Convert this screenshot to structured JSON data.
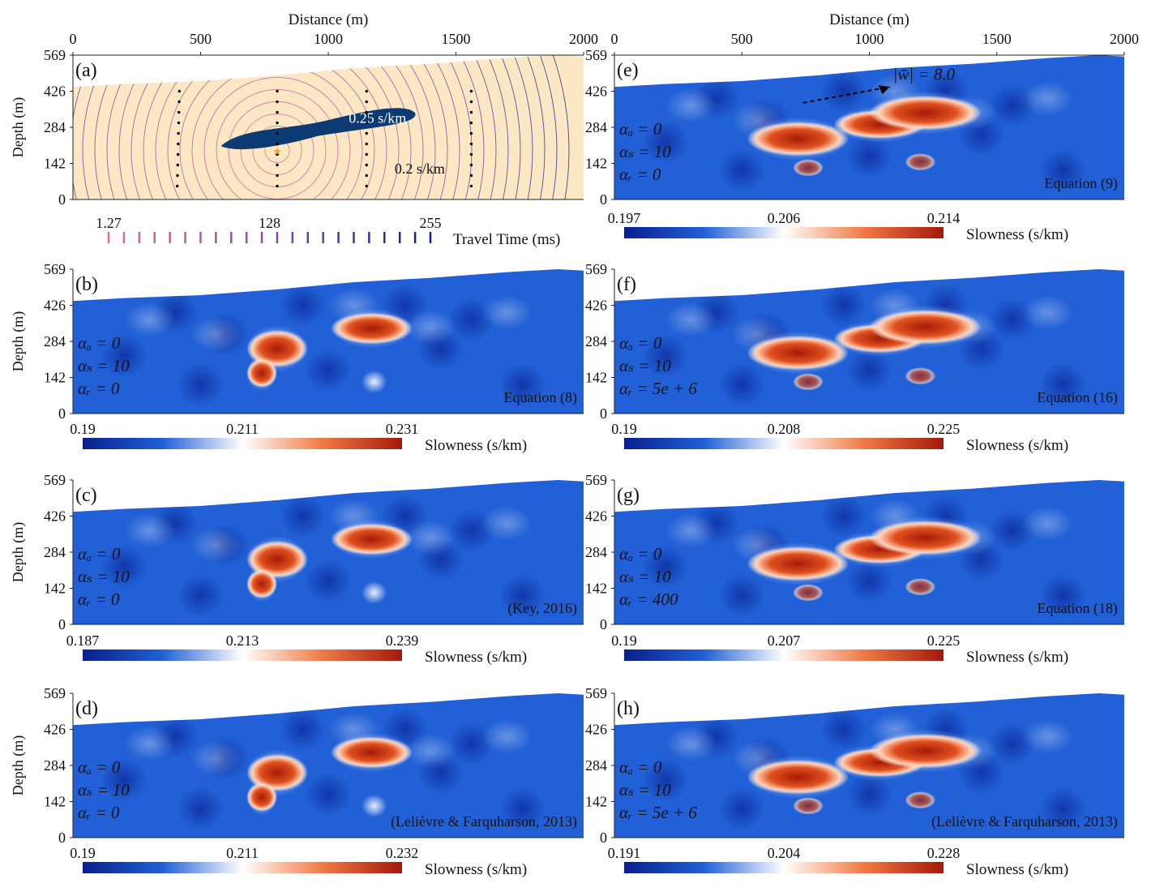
{
  "figure": {
    "distance_label": "Distance (m)",
    "depth_label": "Depth (m)",
    "distance_ticks": [
      "0",
      "500",
      "1000",
      "1500",
      "2000"
    ],
    "depth_ticks": [
      "569",
      "426",
      "284",
      "142",
      "0"
    ],
    "colors": {
      "background_medium": "#fbe7c3",
      "anomaly_dark": "#0c3b73",
      "inversion_base": "#2160d6",
      "inversion_low": "#0a1f8c",
      "inversion_mid": "#ffffff",
      "inversion_high": "#b5200c",
      "travel_time_low": "#e46a95",
      "travel_time_mid": "#8a4aa6",
      "travel_time_high": "#0d1f8a",
      "receiver_dots": "#000000",
      "source_star": "#f0a830"
    }
  },
  "panels": [
    {
      "id": "a",
      "label": "(a)",
      "anomaly_label": "0.25 s/km",
      "background_label": "0.2 s/km",
      "colorbar": {
        "ticks": [
          "1.27",
          "128",
          "255"
        ],
        "title": "Travel Time (ms)"
      }
    },
    {
      "id": "b",
      "label": "(b)",
      "params": [
        "αₐ = 0",
        "αₛ = 10",
        "αᵣ = 0"
      ],
      "equation": "Equation (8)",
      "colorbar": {
        "ticks": [
          "0.19",
          "0.211",
          "0.231"
        ],
        "title": "Slowness (s/km)"
      }
    },
    {
      "id": "c",
      "label": "(c)",
      "params": [
        "αₐ = 0",
        "αₛ = 10",
        "αᵣ = 0"
      ],
      "equation": "(Key, 2016)",
      "colorbar": {
        "ticks": [
          "0.187",
          "0.213",
          "0.239"
        ],
        "title": "Slowness (s/km)"
      }
    },
    {
      "id": "d",
      "label": "(d)",
      "params": [
        "αₐ = 0",
        "αₛ = 10",
        "αᵣ = 0"
      ],
      "equation": "(Lelièvre & Farquharson, 2013)",
      "colorbar": {
        "ticks": [
          "0.19",
          "0.211",
          "0.232"
        ],
        "title": "Slowness (s/km)"
      }
    },
    {
      "id": "e",
      "label": "(e)",
      "params": [
        "αₐ = 0",
        "αₛ = 10",
        "αᵣ = 0"
      ],
      "equation": "Equation (9)",
      "vector_label": "|w̄| = 8.0",
      "colorbar": {
        "ticks": [
          "0.197",
          "0.206",
          "0.214"
        ],
        "title": "Slowness (s/km)"
      }
    },
    {
      "id": "f",
      "label": "(f)",
      "params": [
        "αₐ = 0",
        "αₛ = 10",
        "αᵣ = 5e + 6"
      ],
      "equation": "Equation (16)",
      "colorbar": {
        "ticks": [
          "0.19",
          "0.208",
          "0.225"
        ],
        "title": "Slowness (s/km)"
      }
    },
    {
      "id": "g",
      "label": "(g)",
      "params": [
        "αₐ = 0",
        "αₛ = 10",
        "αᵣ = 400"
      ],
      "equation": "Equation (18)",
      "colorbar": {
        "ticks": [
          "0.19",
          "0.207",
          "0.225"
        ],
        "title": "Slowness (s/km)"
      }
    },
    {
      "id": "h",
      "label": "(h)",
      "params": [
        "αₐ = 0",
        "αₛ = 10",
        "αᵣ = 5e + 6"
      ],
      "equation": "(Lelièvre & Farquharson, 2013)",
      "colorbar": {
        "ticks": [
          "0.191",
          "0.204",
          "0.228"
        ],
        "title": "Slowness (s/km)"
      }
    }
  ]
}
